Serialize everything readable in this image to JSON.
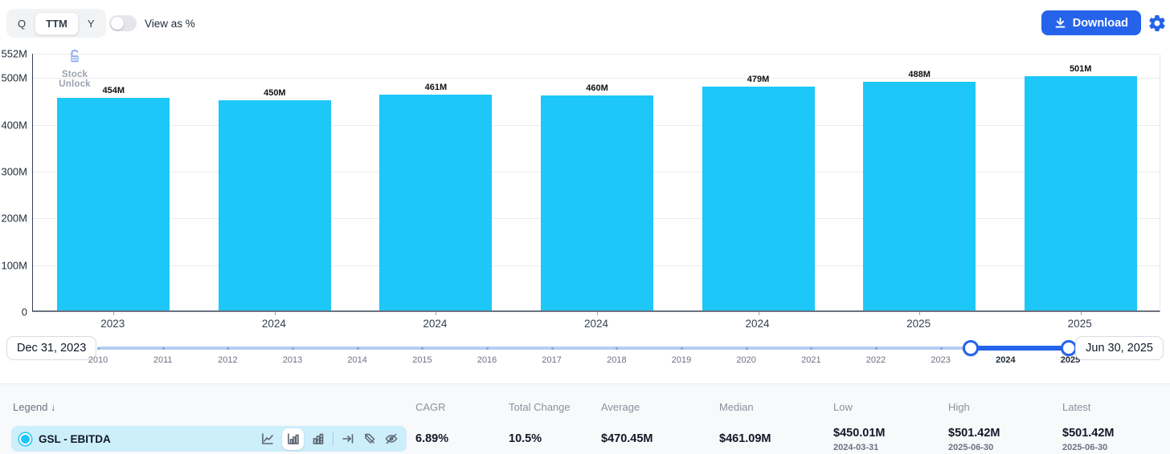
{
  "toolbar": {
    "period_options": [
      {
        "label": "Q",
        "active": false
      },
      {
        "label": "TTM",
        "active": true
      },
      {
        "label": "Y",
        "active": false
      }
    ],
    "view_as_pct_label": "View as %",
    "download_label": "Download"
  },
  "watermark": {
    "text": "Stock Unlock"
  },
  "chart_data": {
    "type": "bar",
    "title": "",
    "series_name": "GSL - EBITDA",
    "categories": [
      "2023",
      "2024",
      "2024",
      "2024",
      "2024",
      "2025",
      "2025"
    ],
    "values": [
      454,
      450,
      461,
      460,
      479,
      488,
      501
    ],
    "bar_labels": [
      "454M",
      "450M",
      "461M",
      "460M",
      "479M",
      "488M",
      "501M"
    ],
    "unit": "M",
    "ylim": [
      0,
      552
    ],
    "yticks": [
      {
        "value": 552,
        "label": "552M"
      },
      {
        "value": 500,
        "label": "500M"
      },
      {
        "value": 400,
        "label": "400M"
      },
      {
        "value": 300,
        "label": "300M"
      },
      {
        "value": 200,
        "label": "200M"
      },
      {
        "value": 100,
        "label": "100M"
      },
      {
        "value": 0,
        "label": "0"
      }
    ],
    "bar_color": "#1dc7f8",
    "grid": true,
    "legend_position": "bottom"
  },
  "range_slider": {
    "start_label": "Dec 31, 2023",
    "end_label": "Jun 30, 2025",
    "years": [
      {
        "label": "2010",
        "in_range": false
      },
      {
        "label": "2011",
        "in_range": false
      },
      {
        "label": "2012",
        "in_range": false
      },
      {
        "label": "2013",
        "in_range": false
      },
      {
        "label": "2014",
        "in_range": false
      },
      {
        "label": "2015",
        "in_range": false
      },
      {
        "label": "2016",
        "in_range": false
      },
      {
        "label": "2017",
        "in_range": false
      },
      {
        "label": "2018",
        "in_range": false
      },
      {
        "label": "2019",
        "in_range": false
      },
      {
        "label": "2020",
        "in_range": false
      },
      {
        "label": "2021",
        "in_range": false
      },
      {
        "label": "2022",
        "in_range": false
      },
      {
        "label": "2023",
        "in_range": false
      },
      {
        "label": "2024",
        "in_range": true
      },
      {
        "label": "2025",
        "in_range": true
      }
    ]
  },
  "stats": {
    "legend_header": "Legend",
    "legend_sort_icon": "arrow-down",
    "series_label": "GSL - EBITDA",
    "row_icons": [
      "line-chart",
      "bar-chart",
      "stacked-bar-chart",
      "axis-right",
      "tag-off",
      "eye-off"
    ],
    "active_icon": "bar-chart",
    "columns": [
      {
        "label": "CAGR",
        "value": "6.89%"
      },
      {
        "label": "Total Change",
        "value": "10.5%"
      },
      {
        "label": "Average",
        "value": "$470.45M"
      },
      {
        "label": "Median",
        "value": "$461.09M"
      },
      {
        "label": "Low",
        "value": "$450.01M",
        "date": "2024-03-31"
      },
      {
        "label": "High",
        "value": "$501.42M",
        "date": "2025-06-30"
      },
      {
        "label": "Latest",
        "value": "$501.42M",
        "date": "2025-06-30"
      }
    ]
  },
  "colors": {
    "accent_blue": "#2563eb",
    "bar_cyan": "#1dc7f8",
    "legend_row_bg": "#cdeefb"
  }
}
